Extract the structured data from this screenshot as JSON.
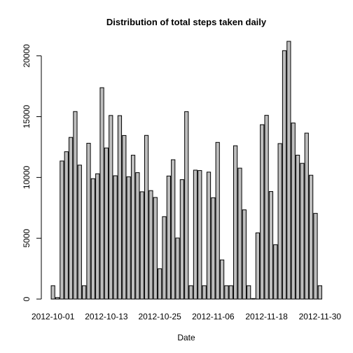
{
  "chart_data": {
    "type": "bar",
    "title": "Distribution of total steps taken daily",
    "xlabel": "Date",
    "ylabel": "",
    "ylim": [
      0,
      21194
    ],
    "yticks": [
      0,
      5000,
      10000,
      15000,
      20000
    ],
    "xtick_labels": [
      "2012-10-01",
      "2012-10-13",
      "2012-10-25",
      "2012-11-06",
      "2012-11-18",
      "2012-11-30"
    ],
    "xtick_indices": [
      0,
      12,
      24,
      36,
      48,
      60
    ],
    "bar_color": "#bebebe",
    "border_color": "#000000",
    "categories": [
      "2012-10-01",
      "2012-10-02",
      "2012-10-03",
      "2012-10-04",
      "2012-10-05",
      "2012-10-06",
      "2012-10-07",
      "2012-10-08",
      "2012-10-09",
      "2012-10-10",
      "2012-10-11",
      "2012-10-12",
      "2012-10-13",
      "2012-10-14",
      "2012-10-15",
      "2012-10-16",
      "2012-10-17",
      "2012-10-18",
      "2012-10-19",
      "2012-10-20",
      "2012-10-21",
      "2012-10-22",
      "2012-10-23",
      "2012-10-24",
      "2012-10-25",
      "2012-10-26",
      "2012-10-27",
      "2012-10-28",
      "2012-10-29",
      "2012-10-30",
      "2012-10-31",
      "2012-11-01",
      "2012-11-02",
      "2012-11-03",
      "2012-11-04",
      "2012-11-05",
      "2012-11-06",
      "2012-11-07",
      "2012-11-08",
      "2012-11-09",
      "2012-11-10",
      "2012-11-11",
      "2012-11-12",
      "2012-11-13",
      "2012-11-14",
      "2012-11-15",
      "2012-11-16",
      "2012-11-17",
      "2012-11-18",
      "2012-11-19",
      "2012-11-20",
      "2012-11-21",
      "2012-11-22",
      "2012-11-23",
      "2012-11-24",
      "2012-11-25",
      "2012-11-26",
      "2012-11-27",
      "2012-11-28",
      "2012-11-29",
      "2012-11-30"
    ],
    "values": [
      1100,
      126,
      11352,
      12116,
      13294,
      15420,
      11015,
      1100,
      12811,
      9900,
      10304,
      17382,
      12426,
      15098,
      10139,
      15084,
      13452,
      10056,
      11829,
      10395,
      8821,
      13460,
      8918,
      8355,
      2492,
      6778,
      10119,
      11458,
      5018,
      9819,
      15414,
      1100,
      10600,
      10571,
      1100,
      10439,
      8334,
      12883,
      3219,
      1100,
      1100,
      12608,
      10765,
      7336,
      1100,
      41,
      5441,
      14339,
      15110,
      8841,
      4472,
      12787,
      20427,
      21194,
      14478,
      11834,
      11162,
      13646,
      10183,
      7047,
      1100
    ]
  }
}
